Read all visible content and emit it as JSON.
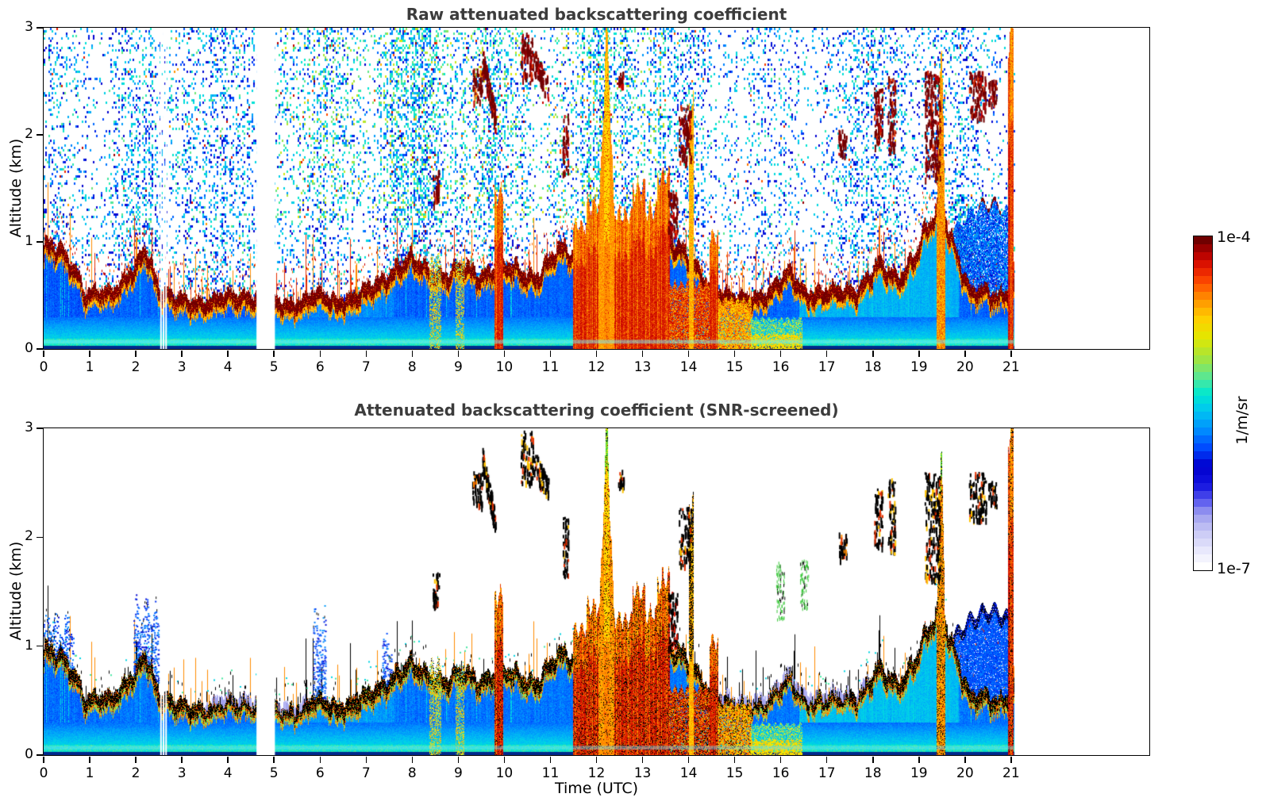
{
  "chart_data": {
    "type": "heatmap",
    "panels": [
      {
        "id": "raw",
        "title": "Raw attenuated backscattering coefficient"
      },
      {
        "id": "screened",
        "title": "Attenuated backscattering coefficient (SNR-screened)"
      }
    ],
    "x": {
      "label": "Time (UTC)",
      "lim": [
        0,
        24
      ],
      "ticks": [
        "0",
        "1",
        "2",
        "3",
        "4",
        "5",
        "6",
        "7",
        "8",
        "9",
        "10",
        "11",
        "12",
        "13",
        "14",
        "15",
        "16",
        "17",
        "18",
        "19",
        "20",
        "21"
      ]
    },
    "y": {
      "label": "Altitude (km)",
      "lim": [
        0,
        3
      ],
      "ticks": [
        "0",
        "1",
        "2",
        "3"
      ]
    },
    "colorbar": {
      "max_label": "1e-4",
      "min_label": "1e-7",
      "units_label": "1/m/sr",
      "scale": "log",
      "segments": 42,
      "stops": [
        [
          0,
          "#ffffff"
        ],
        [
          0.05,
          "#e8e8fc"
        ],
        [
          0.11,
          "#c6c6f5"
        ],
        [
          0.16,
          "#9e9eef"
        ],
        [
          0.2,
          "#5b5bf0"
        ],
        [
          0.25,
          "#1414e0"
        ],
        [
          0.31,
          "#0000cd"
        ],
        [
          0.36,
          "#0045ff"
        ],
        [
          0.42,
          "#0090ff"
        ],
        [
          0.48,
          "#00c8f0"
        ],
        [
          0.53,
          "#00e8d0"
        ],
        [
          0.58,
          "#57e897"
        ],
        [
          0.64,
          "#a6e53c"
        ],
        [
          0.7,
          "#e3e800"
        ],
        [
          0.76,
          "#ffcf00"
        ],
        [
          0.82,
          "#ff9000"
        ],
        [
          0.87,
          "#ff4d00"
        ],
        [
          0.92,
          "#e31500"
        ],
        [
          0.96,
          "#b30000"
        ],
        [
          1,
          "#700000"
        ]
      ]
    },
    "data_end_hour": 21.05,
    "boundary_layer_km": {
      "hours": [
        0,
        0.3,
        0.6,
        0.9,
        1.2,
        1.6,
        2.0,
        2.2,
        2.5,
        2.8,
        3.2,
        3.6,
        4.0,
        4.4,
        4.7,
        5.1,
        5.5,
        5.9,
        6.3,
        6.7,
        7.1,
        7.5,
        7.9,
        8.3,
        8.7,
        9.1,
        9.5,
        9.9,
        10.3,
        10.7,
        11.0,
        11.3,
        11.6,
        11.9,
        12.2,
        12.5,
        12.8,
        13.1,
        13.4,
        13.7,
        14.0,
        14.3,
        14.6,
        15.0,
        15.4,
        15.8,
        16.2,
        16.5,
        16.9,
        17.3,
        17.7,
        18.1,
        18.5,
        18.9,
        19.2,
        19.5,
        19.8,
        20.1,
        20.4,
        20.7,
        21.05
      ],
      "heights": [
        0.95,
        1.05,
        0.85,
        0.52,
        0.58,
        0.62,
        0.78,
        1.0,
        0.62,
        0.5,
        0.48,
        0.5,
        0.52,
        0.55,
        0.5,
        0.45,
        0.48,
        0.55,
        0.5,
        0.52,
        0.6,
        0.76,
        0.86,
        0.8,
        0.72,
        0.78,
        0.75,
        0.8,
        0.78,
        0.72,
        0.85,
        1.0,
        0.9,
        1.0,
        1.1,
        0.9,
        1.0,
        0.85,
        1.0,
        1.05,
        0.85,
        0.7,
        0.6,
        0.5,
        0.52,
        0.6,
        0.74,
        0.6,
        0.55,
        0.58,
        0.62,
        0.8,
        0.72,
        0.9,
        1.15,
        1.45,
        0.95,
        0.55,
        0.6,
        0.55,
        0.6
      ]
    },
    "events": [
      {
        "t0": 8.38,
        "t1": 8.62,
        "top": 0.85,
        "style": "shower"
      },
      {
        "t0": 8.95,
        "t1": 9.12,
        "top": 0.8,
        "style": "shower"
      },
      {
        "t0": 9.78,
        "t1": 9.95,
        "top": 1.45,
        "style": "warm"
      },
      {
        "t0": 11.5,
        "t1": 11.78,
        "top": 1.15,
        "style": "warm"
      },
      {
        "t0": 11.78,
        "t1": 12.05,
        "top": 1.35,
        "style": "warm"
      },
      {
        "t0": 12.05,
        "t1": 12.38,
        "top": 2.92,
        "style": "plume"
      },
      {
        "t0": 12.38,
        "t1": 12.78,
        "top": 1.25,
        "style": "warm"
      },
      {
        "t0": 12.78,
        "t1": 13.05,
        "top": 1.5,
        "style": "warm"
      },
      {
        "t0": 13.05,
        "t1": 13.32,
        "top": 1.3,
        "style": "warm"
      },
      {
        "t0": 13.32,
        "t1": 13.58,
        "top": 1.6,
        "style": "warm"
      },
      {
        "t0": 13.58,
        "t1": 14.45,
        "top": 0.6,
        "style": "warmfill"
      },
      {
        "t0": 14.0,
        "t1": 14.1,
        "top": 2.3,
        "style": "thin"
      },
      {
        "t0": 14.45,
        "t1": 14.62,
        "top": 1.05,
        "style": "warm"
      },
      {
        "t0": 14.62,
        "t1": 15.35,
        "top": 0.45,
        "style": "warmfill2"
      },
      {
        "t0": 15.35,
        "t1": 16.45,
        "top": 0.28,
        "style": "yellowlow"
      },
      {
        "t0": 19.38,
        "t1": 19.56,
        "top": 2.9,
        "style": "plume2"
      },
      {
        "t0": 20.93,
        "t1": 21.04,
        "top": 2.95,
        "style": "warm"
      }
    ],
    "clouds": [
      {
        "t0": 8.44,
        "t1": 8.58,
        "a0": 1.35,
        "a1": 1.68
      },
      {
        "t0": 9.3,
        "t1": 9.52,
        "a0": 2.3,
        "a1": 2.62,
        "accent": "orange"
      },
      {
        "t0": 9.52,
        "t1": 9.8,
        "a0": 2.05,
        "a1": 2.72,
        "slope": -1
      },
      {
        "t0": 10.35,
        "t1": 10.62,
        "a0": 2.5,
        "a1": 2.98
      },
      {
        "t0": 10.62,
        "t1": 10.95,
        "a0": 2.38,
        "a1": 2.72,
        "slope": -1
      },
      {
        "t0": 11.26,
        "t1": 11.38,
        "a0": 1.65,
        "a1": 2.2
      },
      {
        "t0": 12.46,
        "t1": 12.58,
        "a0": 2.45,
        "a1": 2.62
      },
      {
        "t0": 13.55,
        "t1": 13.75,
        "a0": 1.0,
        "a1": 1.5,
        "accent": "red"
      },
      {
        "t0": 13.78,
        "t1": 14.05,
        "a0": 1.75,
        "a1": 2.28
      },
      {
        "t0": 17.25,
        "t1": 17.42,
        "a0": 1.8,
        "a1": 2.05,
        "accent": "orange"
      },
      {
        "t0": 18.02,
        "t1": 18.2,
        "a0": 1.9,
        "a1": 2.45
      },
      {
        "t0": 18.32,
        "t1": 18.48,
        "a0": 1.85,
        "a1": 2.55
      },
      {
        "t0": 19.12,
        "t1": 19.45,
        "a0": 1.6,
        "a1": 2.6
      },
      {
        "t0": 20.08,
        "t1": 20.45,
        "a0": 2.15,
        "a1": 2.6
      },
      {
        "t0": 20.5,
        "t1": 20.68,
        "a0": 2.3,
        "a1": 2.52
      }
    ],
    "green_clusters": [
      {
        "t0": 15.9,
        "t1": 16.08,
        "a0": 1.25,
        "a1": 1.8
      },
      {
        "t0": 16.42,
        "t1": 16.6,
        "a0": 1.35,
        "a1": 1.8
      }
    ],
    "fuzz_plumes": [
      {
        "t0": 0.0,
        "t1": 0.65,
        "top": 1.25
      },
      {
        "t0": 1.95,
        "t1": 2.5,
        "top": 1.35
      },
      {
        "t0": 5.85,
        "t1": 6.12,
        "top": 1.3
      },
      {
        "t0": 7.35,
        "t1": 7.55,
        "top": 1.05
      }
    ],
    "lavender_ranges": [
      [
        3.5,
        4.62
      ],
      [
        5.05,
        5.7
      ],
      [
        14.6,
        16.8
      ],
      [
        16.9,
        17.9
      ]
    ],
    "deck": {
      "t0": 19.75,
      "t1": 21.03,
      "base_top_km": 1.1,
      "amp_km": 0.25,
      "cap_t": [
        20.28,
        20.78
      ]
    },
    "gaps": {
      "wide": [
        [
          4.62,
          5.02
        ]
      ],
      "thin": [
        [
          2.53,
          2.555
        ],
        [
          2.585,
          2.61
        ],
        [
          2.64,
          2.665
        ]
      ]
    },
    "palettes": {
      "warm": [
        "#c80000",
        "#e33000",
        "#ff7a00",
        "#ffc300",
        "#f0e800"
      ],
      "maroon": [
        "#700000",
        "#8d0000",
        "#a50000"
      ],
      "shower": [
        "#ffd700",
        "#c8e830",
        "#00d0e0",
        "#ffa000"
      ],
      "plume2": [
        "#ff9000",
        "#ffc300",
        "#e85000"
      ],
      "black": "#000000",
      "green": "#39c839"
    }
  }
}
